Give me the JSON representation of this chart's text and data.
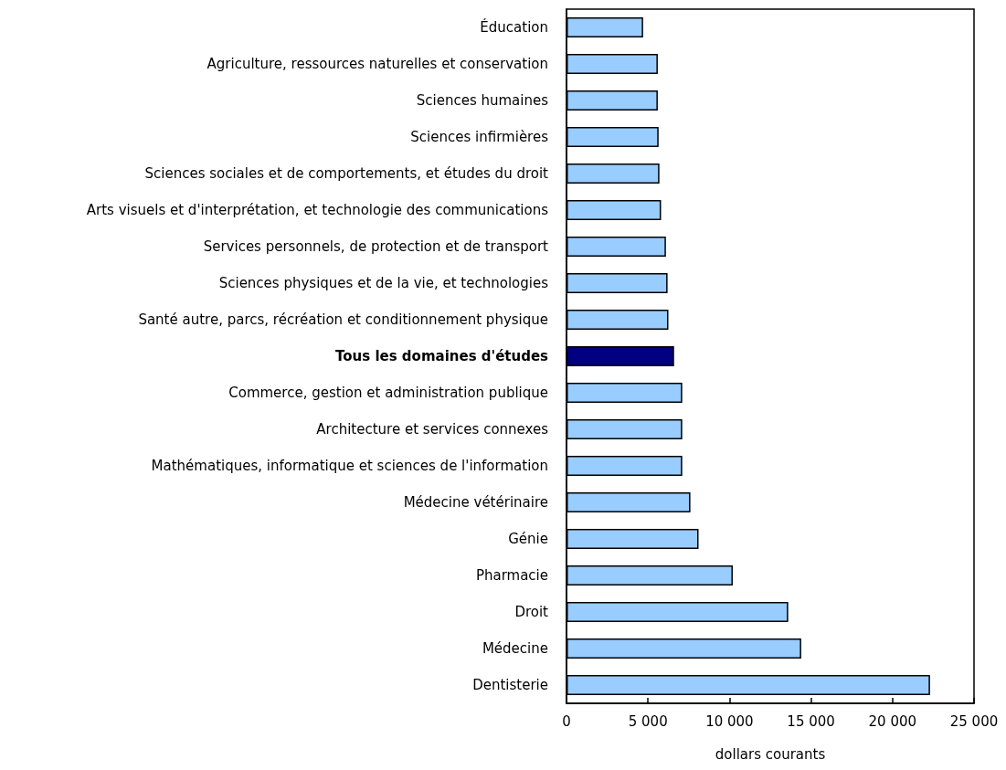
{
  "chart_data": {
    "type": "bar",
    "orientation": "horizontal",
    "xlabel": "dollars courants",
    "categories": [
      "Éducation",
      "Agriculture, ressources naturelles et conservation",
      "Sciences humaines",
      "Sciences infirmières",
      "Sciences sociales et de comportements, et études du droit",
      "Arts visuels et d'interprétation, et technologie des communications",
      "Services personnels, de protection et de transport",
      "Sciences physiques et de la vie, et technologies",
      "Santé autre, parcs, récréation et conditionnement physique",
      "Tous les domaines d'études",
      "Commerce, gestion et administration publique",
      "Architecture et services connexes",
      "Mathématiques, informatique et sciences de l'information",
      "Médecine vétérinaire",
      "Génie",
      "Pharmacie",
      "Droit",
      "Médecine",
      "Dentisterie"
    ],
    "values": [
      4700,
      5600,
      5600,
      5650,
      5700,
      5800,
      6100,
      6200,
      6250,
      6600,
      7100,
      7100,
      7100,
      7600,
      8100,
      10200,
      13600,
      14400,
      22300
    ],
    "colors": [
      "#99ccff",
      "#99ccff",
      "#99ccff",
      "#99ccff",
      "#99ccff",
      "#99ccff",
      "#99ccff",
      "#99ccff",
      "#99ccff",
      "#000080",
      "#99ccff",
      "#99ccff",
      "#99ccff",
      "#99ccff",
      "#99ccff",
      "#99ccff",
      "#99ccff",
      "#99ccff",
      "#99ccff"
    ],
    "xlim": [
      0,
      25000
    ],
    "xticks": [
      {
        "value": 0,
        "label": "0"
      },
      {
        "value": 5000,
        "label": "5 000"
      },
      {
        "value": 10000,
        "label": "10 000"
      },
      {
        "value": 15000,
        "label": "15 000"
      },
      {
        "value": 20000,
        "label": "20 000"
      },
      {
        "value": 25000,
        "label": "25 000"
      }
    ],
    "grid": false
  }
}
